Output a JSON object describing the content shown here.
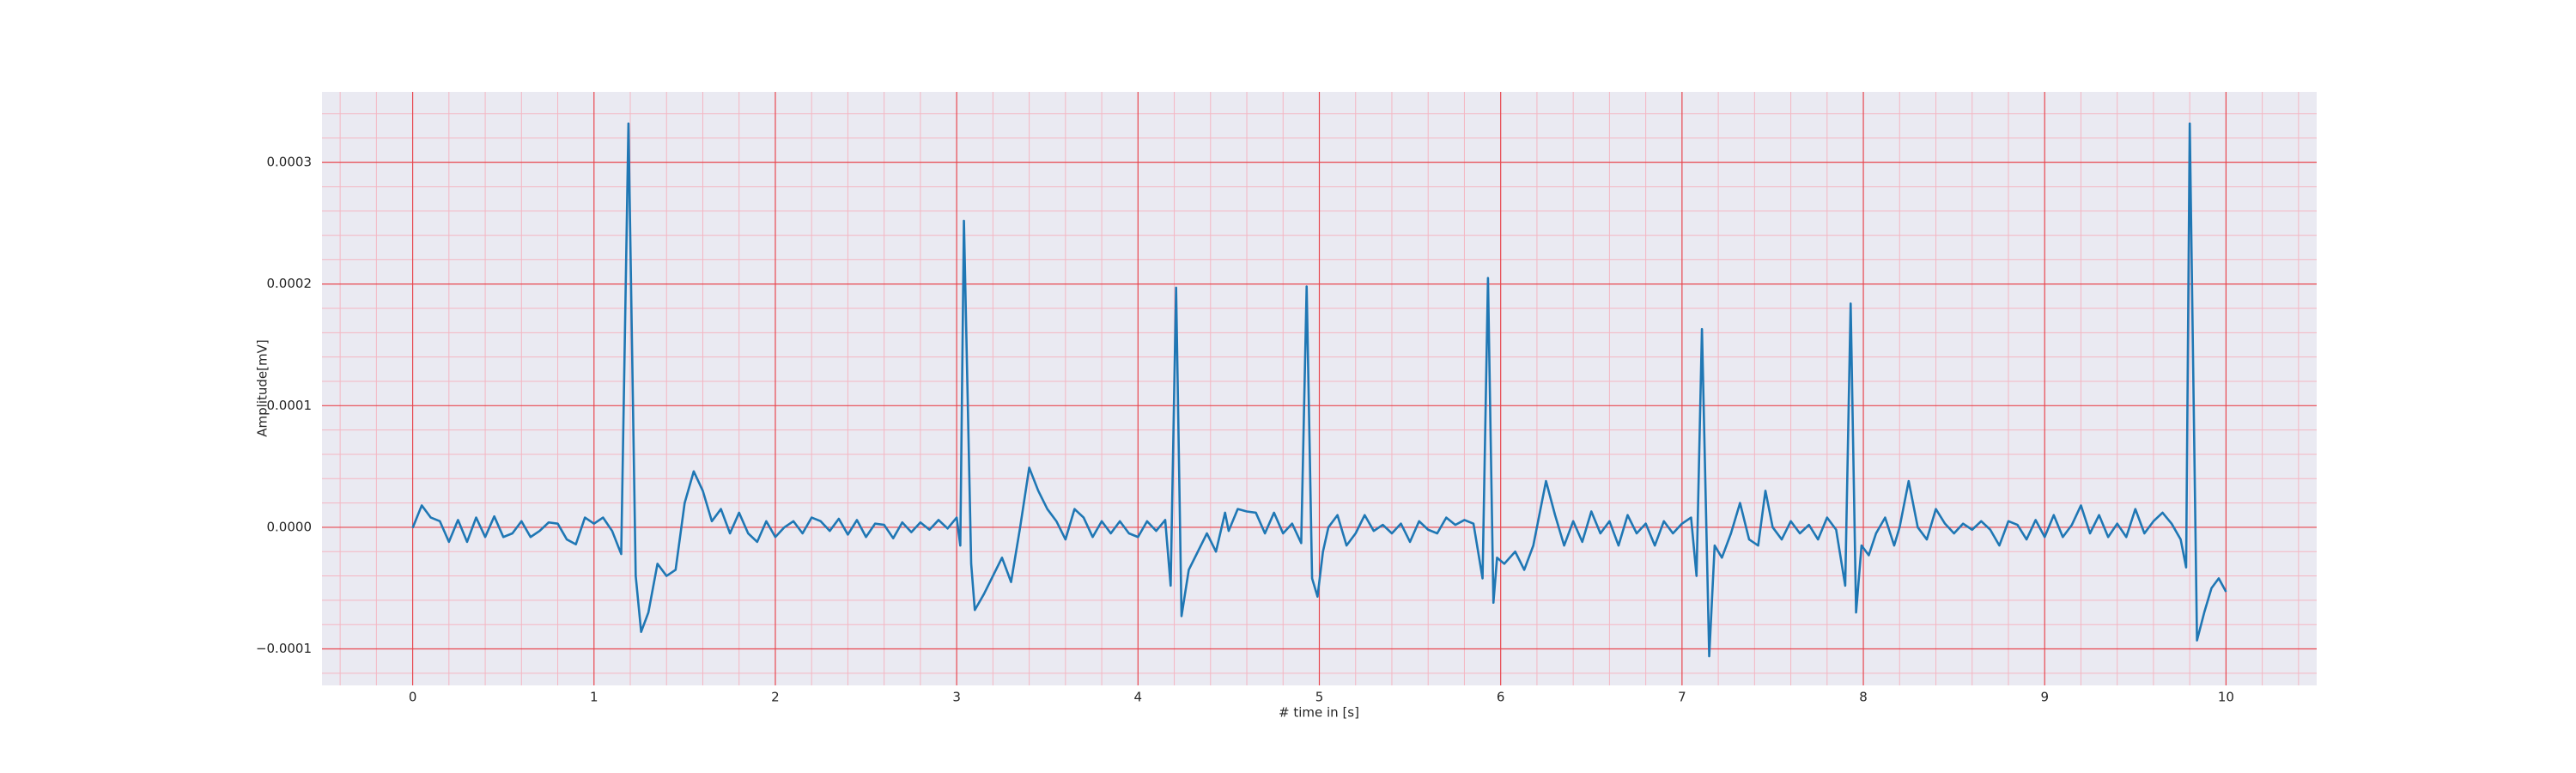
{
  "chart_data": {
    "type": "line",
    "xlabel": "# time in [s]",
    "ylabel": "Amplitude[mV]",
    "color": "#1f77b4",
    "grid": true,
    "minor_grid": true,
    "xlim": [
      -0.5,
      10.5
    ],
    "xticks": [
      0,
      1,
      2,
      3,
      4,
      5,
      6,
      7,
      8,
      9,
      10
    ],
    "ylim": [
      -0.00013,
      0.000358
    ],
    "yticks": [
      {
        "value": -0.0001,
        "label": "−0.0001"
      },
      {
        "value": 0,
        "label": "0.0000"
      },
      0.0001,
      0.0002,
      0.0003
    ],
    "x": [
      0,
      0.05,
      0.1,
      0.15,
      0.2,
      0.25,
      0.3,
      0.35,
      0.4,
      0.45,
      0.5,
      0.55,
      0.6,
      0.65,
      0.7,
      0.75,
      0.8,
      0.85,
      0.9,
      0.95,
      1.0,
      1.05,
      1.1,
      1.15,
      1.19,
      1.23,
      1.26,
      1.3,
      1.35,
      1.4,
      1.45,
      1.5,
      1.55,
      1.6,
      1.65,
      1.7,
      1.75,
      1.8,
      1.85,
      1.9,
      1.95,
      2.0,
      2.05,
      2.1,
      2.15,
      2.2,
      2.25,
      2.3,
      2.35,
      2.4,
      2.45,
      2.5,
      2.55,
      2.6,
      2.65,
      2.7,
      2.75,
      2.8,
      2.85,
      2.9,
      2.95,
      3.0,
      3.02,
      3.04,
      3.08,
      3.1,
      3.15,
      3.2,
      3.25,
      3.3,
      3.35,
      3.4,
      3.45,
      3.5,
      3.55,
      3.6,
      3.65,
      3.7,
      3.75,
      3.8,
      3.85,
      3.9,
      3.95,
      4.0,
      4.05,
      4.1,
      4.15,
      4.18,
      4.21,
      4.24,
      4.28,
      4.33,
      4.38,
      4.43,
      4.48,
      4.5,
      4.55,
      4.6,
      4.65,
      4.7,
      4.75,
      4.8,
      4.85,
      4.9,
      4.93,
      4.96,
      4.99,
      5.02,
      5.05,
      5.1,
      5.15,
      5.2,
      5.25,
      5.3,
      5.35,
      5.4,
      5.45,
      5.5,
      5.55,
      5.6,
      5.65,
      5.7,
      5.75,
      5.8,
      5.85,
      5.9,
      5.93,
      5.96,
      5.98,
      6.02,
      6.08,
      6.13,
      6.18,
      6.25,
      6.3,
      6.35,
      6.4,
      6.45,
      6.5,
      6.55,
      6.6,
      6.65,
      6.7,
      6.75,
      6.8,
      6.85,
      6.9,
      6.95,
      7.0,
      7.05,
      7.08,
      7.11,
      7.15,
      7.18,
      7.22,
      7.27,
      7.32,
      7.37,
      7.42,
      7.46,
      7.5,
      7.55,
      7.6,
      7.65,
      7.7,
      7.75,
      7.8,
      7.85,
      7.9,
      7.93,
      7.96,
      7.99,
      8.03,
      8.07,
      8.12,
      8.17,
      8.2,
      8.25,
      8.3,
      8.35,
      8.4,
      8.45,
      8.5,
      8.55,
      8.6,
      8.65,
      8.7,
      8.75,
      8.8,
      8.85,
      8.9,
      8.95,
      9.0,
      9.05,
      9.1,
      9.15,
      9.2,
      9.25,
      9.3,
      9.35,
      9.4,
      9.45,
      9.5,
      9.55,
      9.6,
      9.65,
      9.7,
      9.75,
      9.78,
      9.8,
      9.84,
      9.88,
      9.92,
      9.96,
      10.0
    ],
    "values": [
      -5e-07,
      1.8e-05,
      8e-06,
      5e-06,
      -1.2e-05,
      6e-06,
      -1.2e-05,
      8e-06,
      -8e-06,
      9e-06,
      -8e-06,
      -5e-06,
      5e-06,
      -8e-06,
      -3e-06,
      4e-06,
      3e-06,
      -1e-05,
      -1.4e-05,
      8e-06,
      3e-06,
      8e-06,
      -3e-06,
      -2.2e-05,
      0.000332,
      -4e-05,
      -8.6e-05,
      -7e-05,
      -3e-05,
      -4e-05,
      -3.5e-05,
      2e-05,
      4.6e-05,
      3e-05,
      5e-06,
      1.5e-05,
      -5e-06,
      1.2e-05,
      -5e-06,
      -1.2e-05,
      5e-06,
      -8e-06,
      0,
      5e-06,
      -5e-06,
      8e-06,
      5e-06,
      -3e-06,
      7e-06,
      -6e-06,
      6e-06,
      -8e-06,
      3e-06,
      2e-06,
      -9e-06,
      4e-06,
      -4e-06,
      4e-06,
      -2e-06,
      6e-06,
      -1e-06,
      8e-06,
      -1.5e-05,
      0.000252,
      -3e-05,
      -6.8e-05,
      -5.5e-05,
      -4e-05,
      -2.5e-05,
      -4.5e-05,
      0,
      4.9e-05,
      3e-05,
      1.5e-05,
      5e-06,
      -1e-05,
      1.5e-05,
      8e-06,
      -8e-06,
      5e-06,
      -5e-06,
      5e-06,
      -5e-06,
      -8e-06,
      5e-06,
      -3e-06,
      6e-06,
      -4.8e-05,
      0.000197,
      -7.3e-05,
      -3.5e-05,
      -2e-05,
      -5e-06,
      -2e-05,
      1.2e-05,
      -3e-06,
      1.5e-05,
      1.3e-05,
      1.2e-05,
      -5e-06,
      1.2e-05,
      -5e-06,
      3e-06,
      -1.3e-05,
      0.000198,
      -4.2e-05,
      -5.7e-05,
      -2e-05,
      0,
      1e-05,
      -1.5e-05,
      -5e-06,
      1e-05,
      -3e-06,
      2e-06,
      -5e-06,
      3e-06,
      -1.2e-05,
      5e-06,
      -2e-06,
      -5e-06,
      8e-06,
      2e-06,
      6e-06,
      3e-06,
      -4.2e-05,
      0.000205,
      -6.2e-05,
      -2.5e-05,
      -3e-05,
      -2e-05,
      -3.5e-05,
      -1.5e-05,
      3.8e-05,
      1e-05,
      -1.5e-05,
      5e-06,
      -1.2e-05,
      1.3e-05,
      -5e-06,
      5e-06,
      -1.5e-05,
      1e-05,
      -5e-06,
      3e-06,
      -1.5e-05,
      5e-06,
      -5e-06,
      3e-06,
      8e-06,
      -4e-05,
      0.000163,
      -0.000106,
      -1.5e-05,
      -2.5e-05,
      -5e-06,
      2e-05,
      -1e-05,
      -1.5e-05,
      3e-05,
      0,
      -1e-05,
      5e-06,
      -5e-06,
      2e-06,
      -1e-05,
      8e-06,
      -2e-06,
      -4.8e-05,
      0.000184,
      -7e-05,
      -1.5e-05,
      -2.3e-05,
      -5e-06,
      8e-06,
      -1.5e-05,
      0,
      3.8e-05,
      0,
      -1e-05,
      1.5e-05,
      3e-06,
      -5e-06,
      3e-06,
      -2e-06,
      5e-06,
      -2e-06,
      -1.5e-05,
      5e-06,
      2e-06,
      -1e-05,
      6e-06,
      -8e-06,
      1e-05,
      -8e-06,
      2e-06,
      1.8e-05,
      -5e-06,
      1e-05,
      -8e-06,
      3e-06,
      -8e-06,
      1.5e-05,
      -5e-06,
      5e-06,
      1.2e-05,
      3e-06,
      -1e-05,
      -3.3e-05,
      0.000332,
      -9.3e-05,
      -7e-05,
      -5e-05,
      -4.2e-05,
      -5.3e-05
    ]
  }
}
